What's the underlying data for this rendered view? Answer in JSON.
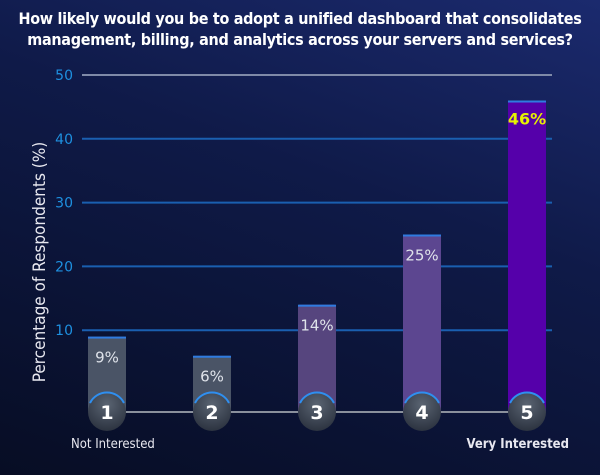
{
  "chart_data": {
    "type": "bar",
    "title": "How likely would you be to adopt a unified dashboard that consolidates management, billing, and analytics across your servers and services?",
    "ylabel": "Percentage of Respondents (%)",
    "xlabel": "",
    "categories": [
      "1",
      "2",
      "3",
      "4",
      "5"
    ],
    "values": [
      9,
      6,
      14,
      25,
      46
    ],
    "data_labels": [
      "9%",
      "6%",
      "14%",
      "25%",
      "46%"
    ],
    "scale_labels": {
      "low": "Not Interested",
      "high": "Very Interested"
    },
    "ylim": [
      0,
      50
    ],
    "yticks": [
      10,
      20,
      30,
      40,
      50
    ],
    "grid": true,
    "colors": [
      "#4a5466",
      "#4a5466",
      "#56457e",
      "#5c4690",
      "#5500aa"
    ],
    "highlight_label_color": "#e6f200",
    "tick_color": "#1e90e0"
  }
}
